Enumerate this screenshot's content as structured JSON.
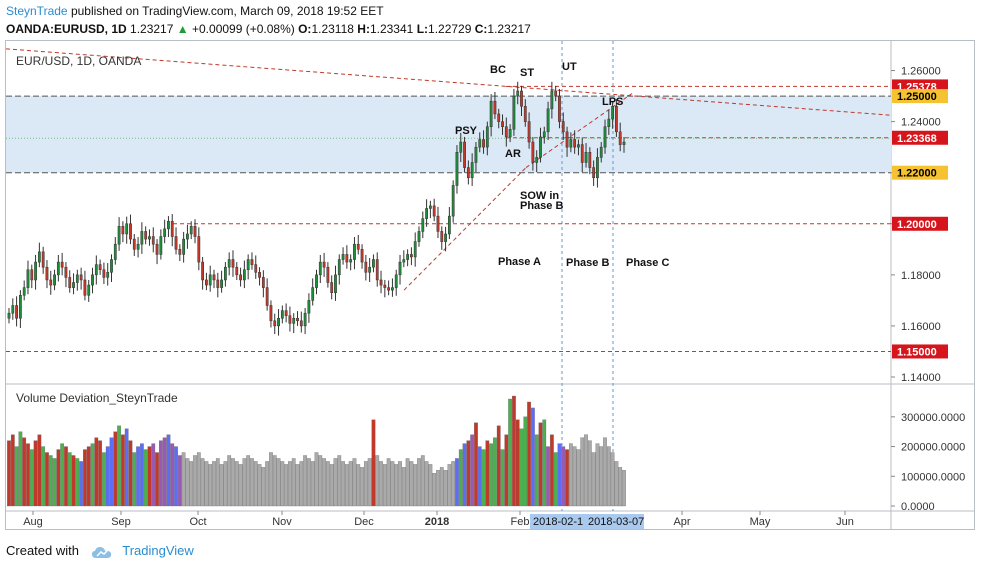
{
  "header": {
    "author": "SteynTrade",
    "published_text": "published on TradingView.com, March 09, 2018 19:52 EET",
    "symbol": "OANDA:EURUSD, 1D",
    "last": "1.23217",
    "change": "+0.00099 (+0.08%)",
    "o_label": "O:",
    "o": "1.23118",
    "h_label": "H:",
    "h": "1.23341",
    "l_label": "L:",
    "l": "1.22729",
    "c_label": "C:",
    "c": "1.23217"
  },
  "footer": {
    "created_with": "Created with",
    "brand": "TradingView"
  },
  "chart_data": [
    {
      "type": "candlestick",
      "title": "EUR/USD, 1D, OANDA",
      "ylim": [
        1.14,
        1.27
      ],
      "y_ticks": [
        "1.14000",
        "1.16000",
        "1.18000",
        "1.20000",
        "1.22000",
        "1.24000",
        "1.26000"
      ],
      "x_ticks": [
        "Aug",
        "Sep",
        "Oct",
        "Nov",
        "Dec",
        "2018",
        "Feb",
        "Apr",
        "May",
        "Jun"
      ],
      "x_highlight_labels": [
        "2018-02-1",
        "2018-03-07"
      ],
      "price_tags": [
        {
          "value": "1.25378",
          "color": "#d6141c"
        },
        {
          "value": "1.25000",
          "color": "#f5c231"
        },
        {
          "value": "1.23368",
          "color": "#d6141c"
        },
        {
          "value": "1.22000",
          "color": "#f5c231"
        },
        {
          "value": "1.20000",
          "color": "#d6141c"
        },
        {
          "value": "1.15000",
          "color": "#d6141c"
        }
      ],
      "range_box": [
        1.22,
        1.25
      ],
      "annotations": [
        "BC",
        "ST",
        "UT",
        "LPS",
        "PSY",
        "AR",
        "SOW in",
        "Phase B",
        "Phase A",
        "Phase B",
        "Phase C"
      ],
      "colors": {
        "up": "#1f8c3a",
        "down": "#c0392b",
        "box": "#dbe8f6"
      },
      "series": {
        "close": [
          1.165,
          1.168,
          1.163,
          1.172,
          1.175,
          1.182,
          1.178,
          1.185,
          1.189,
          1.183,
          1.178,
          1.176,
          1.18,
          1.185,
          1.183,
          1.179,
          1.175,
          1.177,
          1.18,
          1.178,
          1.172,
          1.176,
          1.18,
          1.184,
          1.182,
          1.179,
          1.181,
          1.186,
          1.192,
          1.199,
          1.196,
          1.2,
          1.194,
          1.19,
          1.192,
          1.197,
          1.194,
          1.195,
          1.192,
          1.188,
          1.195,
          1.198,
          1.201,
          1.195,
          1.19,
          1.188,
          1.194,
          1.196,
          1.199,
          1.195,
          1.185,
          1.178,
          1.176,
          1.18,
          1.178,
          1.175,
          1.178,
          1.183,
          1.186,
          1.183,
          1.18,
          1.178,
          1.182,
          1.186,
          1.184,
          1.181,
          1.179,
          1.175,
          1.168,
          1.162,
          1.16,
          1.163,
          1.166,
          1.164,
          1.161,
          1.163,
          1.162,
          1.16,
          1.165,
          1.17,
          1.175,
          1.18,
          1.185,
          1.183,
          1.177,
          1.173,
          1.18,
          1.186,
          1.188,
          1.185,
          1.186,
          1.192,
          1.19,
          1.185,
          1.181,
          1.183,
          1.186,
          1.178,
          1.176,
          1.175,
          1.174,
          1.175,
          1.18,
          1.185,
          1.186,
          1.188,
          1.187,
          1.193,
          1.197,
          1.202,
          1.206,
          1.207,
          1.203,
          1.197,
          1.193,
          1.196,
          1.203,
          1.215,
          1.228,
          1.232,
          1.222,
          1.218,
          1.224,
          1.23,
          1.233,
          1.23,
          1.238,
          1.248,
          1.243,
          1.24,
          1.238,
          1.234,
          1.237,
          1.25,
          1.252,
          1.246,
          1.24,
          1.232,
          1.224,
          1.226,
          1.234,
          1.236,
          1.245,
          1.252,
          1.25,
          1.24,
          1.236,
          1.23,
          1.233,
          1.23,
          1.231,
          1.224,
          1.228,
          1.222,
          1.218,
          1.226,
          1.23,
          1.238,
          1.241,
          1.246,
          1.236,
          1.231,
          1.232
        ],
        "volume_deviation": [
          220000,
          240000,
          200000,
          250000,
          230000,
          210000,
          190000,
          220000,
          240000,
          200000,
          180000,
          170000,
          160000,
          190000,
          210000,
          200000,
          180000,
          170000,
          160000,
          150000,
          190000,
          200000,
          210000,
          230000,
          220000,
          180000,
          200000,
          230000,
          250000,
          270000,
          240000,
          260000,
          220000,
          180000,
          200000,
          210000,
          190000,
          200000,
          210000,
          180000,
          220000,
          230000,
          240000,
          210000,
          200000,
          170000,
          180000,
          160000,
          150000,
          170000,
          180000,
          160000,
          150000,
          140000,
          150000,
          160000,
          140000,
          150000,
          170000,
          160000,
          150000,
          140000,
          160000,
          170000,
          160000,
          150000,
          140000,
          130000,
          150000,
          180000,
          170000,
          160000,
          150000,
          140000,
          150000,
          160000,
          140000,
          150000,
          170000,
          160000,
          150000,
          180000,
          170000,
          160000,
          150000,
          140000,
          160000,
          170000,
          150000,
          140000,
          150000,
          160000,
          140000,
          130000,
          150000,
          160000,
          290000,
          170000,
          150000,
          140000,
          160000,
          150000,
          140000,
          150000,
          130000,
          160000,
          150000,
          140000,
          160000,
          170000,
          150000,
          140000,
          110000,
          120000,
          130000,
          120000,
          140000,
          150000,
          160000,
          190000,
          210000,
          220000,
          240000,
          280000,
          200000,
          190000,
          220000,
          210000,
          230000,
          270000,
          190000,
          240000,
          360000,
          370000,
          290000,
          260000,
          300000,
          350000,
          330000,
          240000,
          280000,
          290000,
          200000,
          240000,
          180000,
          210000,
          200000,
          190000,
          210000,
          200000,
          190000,
          230000,
          240000,
          220000,
          180000,
          210000,
          200000,
          230000,
          200000,
          180000,
          150000,
          130000,
          120000
        ],
        "volume_colors": [
          "#c0392b",
          "#c0392b",
          "#4caf50",
          "#4caf50",
          "#c0392b",
          "#c0392b",
          "#4caf50",
          "#c0392b",
          "#c0392b",
          "#4caf50",
          "#c0392b",
          "#4caf50",
          "#4caf50",
          "#c0392b",
          "#4caf50",
          "#c0392b",
          "#4caf50",
          "#c0392b",
          "#4caf50",
          "#5b6ef5",
          "#c0392b",
          "#c0392b",
          "#4caf50",
          "#c0392b",
          "#c0392b",
          "#4caf50",
          "#5b6ef5",
          "#5b6ef5",
          "#c0392b",
          "#4caf50",
          "#c0392b",
          "#5b6ef5",
          "#c0392b",
          "#4caf50",
          "#5b6ef5",
          "#5b6ef5",
          "#4caf50",
          "#c0392b",
          "#9b59b6",
          "#c0392b",
          "#9b59b6",
          "#9b59b6",
          "#5b6ef5",
          "#9b59b6",
          "#5b6ef5",
          "#9b59b6",
          "#aaaaaa",
          "#aaaaaa",
          "#aaaaaa",
          "#aaaaaa",
          "#aaaaaa",
          "#aaaaaa",
          "#aaaaaa",
          "#aaaaaa",
          "#aaaaaa",
          "#aaaaaa",
          "#aaaaaa",
          "#aaaaaa",
          "#aaaaaa",
          "#aaaaaa",
          "#aaaaaa",
          "#aaaaaa",
          "#aaaaaa",
          "#aaaaaa",
          "#aaaaaa",
          "#aaaaaa",
          "#aaaaaa",
          "#aaaaaa",
          "#aaaaaa",
          "#aaaaaa",
          "#aaaaaa",
          "#aaaaaa",
          "#aaaaaa",
          "#aaaaaa",
          "#aaaaaa",
          "#aaaaaa",
          "#aaaaaa",
          "#aaaaaa",
          "#aaaaaa",
          "#aaaaaa",
          "#aaaaaa",
          "#aaaaaa",
          "#aaaaaa",
          "#aaaaaa",
          "#aaaaaa",
          "#aaaaaa",
          "#aaaaaa",
          "#aaaaaa",
          "#aaaaaa",
          "#aaaaaa",
          "#aaaaaa",
          "#aaaaaa",
          "#aaaaaa",
          "#aaaaaa",
          "#aaaaaa",
          "#aaaaaa",
          "#c0392b",
          "#aaaaaa",
          "#aaaaaa",
          "#aaaaaa",
          "#aaaaaa",
          "#aaaaaa",
          "#aaaaaa",
          "#aaaaaa",
          "#aaaaaa",
          "#aaaaaa",
          "#aaaaaa",
          "#aaaaaa",
          "#aaaaaa",
          "#aaaaaa",
          "#aaaaaa",
          "#aaaaaa",
          "#aaaaaa",
          "#aaaaaa",
          "#aaaaaa",
          "#aaaaaa",
          "#aaaaaa",
          "#aaaaaa",
          "#5b6ef5",
          "#4caf50",
          "#5b6ef5",
          "#c0392b",
          "#9b59b6",
          "#c0392b",
          "#5b6ef5",
          "#4caf50",
          "#c0392b",
          "#4caf50",
          "#4caf50",
          "#c0392b",
          "#4caf50",
          "#c0392b",
          "#4caf50",
          "#c0392b",
          "#c0392b",
          "#4caf50",
          "#4caf50",
          "#c0392b",
          "#5b6ef5",
          "#4caf50",
          "#c0392b",
          "#4caf50",
          "#9b59b6",
          "#c0392b",
          "#4caf50",
          "#5b6ef5",
          "#9b59b6",
          "#c0392b",
          "#aaaaaa",
          "#aaaaaa",
          "#aaaaaa",
          "#aaaaaa",
          "#aaaaaa",
          "#aaaaaa",
          "#aaaaaa",
          "#aaaaaa",
          "#aaaaaa",
          "#aaaaaa",
          "#aaaaaa",
          "#aaaaaa",
          "#aaaaaa",
          "#aaaaaa",
          "#aaaaaa",
          "#aaaaaa"
        ]
      }
    },
    {
      "type": "bar",
      "title": "Volume Deviation_SteynTrade",
      "ylim": [
        0,
        360000
      ],
      "y_ticks": [
        "0.0000",
        "100000.0000",
        "200000.0000",
        "300000.0000"
      ]
    }
  ]
}
